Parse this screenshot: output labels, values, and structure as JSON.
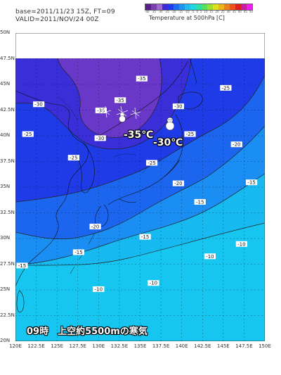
{
  "header": {
    "base": "base=2011/11/23 15Z, FT=09",
    "valid": "VALID=2011/NOV/24 00Z"
  },
  "legend": {
    "title": "Temperature at 500hPa  [C]",
    "ticks": [
      "-40",
      "-35",
      "-30",
      "-25",
      "-20",
      "-15",
      "-10",
      "-5",
      "0",
      "5",
      "10",
      "15",
      "20",
      "25",
      "30",
      "35",
      "40",
      "45",
      "50"
    ],
    "colors": [
      "#5a1e8c",
      "#7a3fb0",
      "#9a6ad0",
      "#3c2ad8",
      "#1e3cf0",
      "#1e6ef0",
      "#1e96f0",
      "#1ebef0",
      "#1ed8e0",
      "#2ce0a0",
      "#5ae05a",
      "#a0e02c",
      "#e0e01e",
      "#f0b41e",
      "#f0821e",
      "#f0501e",
      "#e01e1e",
      "#c81ea0",
      "#f01ef0"
    ]
  },
  "axes": {
    "lat_labels": [
      "50N",
      "47.5N",
      "45N",
      "42.5N",
      "40N",
      "37.5N",
      "35N",
      "32.5N",
      "30N",
      "27.5N",
      "25N",
      "22.5N",
      "20N"
    ],
    "lon_labels": [
      "120E",
      "122.5E",
      "125E",
      "127.5E",
      "130E",
      "132.5E",
      "135E",
      "137.5E",
      "140E",
      "142.5E",
      "145E",
      "147.5E",
      "150E"
    ],
    "lat_range": [
      20,
      50
    ],
    "lon_range": [
      120,
      150
    ]
  },
  "contours": [
    {
      "text": "-35",
      "lon": 135.2,
      "lat": 45.5
    },
    {
      "text": "-35",
      "lon": 132.6,
      "lat": 43.4
    },
    {
      "text": "-35",
      "lon": 130.3,
      "lat": 42.4
    },
    {
      "text": "-30",
      "lon": 122.8,
      "lat": 43.0
    },
    {
      "text": "-30",
      "lon": 139.6,
      "lat": 42.8
    },
    {
      "text": "-30",
      "lon": 130.2,
      "lat": 39.7
    },
    {
      "text": "-25",
      "lon": 145.3,
      "lat": 44.6
    },
    {
      "text": "-25",
      "lon": 121.5,
      "lat": 40.1
    },
    {
      "text": "-25",
      "lon": 141.0,
      "lat": 40.1
    },
    {
      "text": "-25",
      "lon": 127.0,
      "lat": 37.8
    },
    {
      "text": "-25",
      "lon": 136.4,
      "lat": 37.3
    },
    {
      "text": "-20",
      "lon": 146.6,
      "lat": 39.1
    },
    {
      "text": "-20",
      "lon": 139.6,
      "lat": 35.3
    },
    {
      "text": "-20",
      "lon": 129.6,
      "lat": 31.1
    },
    {
      "text": "-15",
      "lon": 148.4,
      "lat": 35.4
    },
    {
      "text": "-15",
      "lon": 142.2,
      "lat": 33.5
    },
    {
      "text": "-15",
      "lon": 135.6,
      "lat": 30.1
    },
    {
      "text": "-15",
      "lon": 120.8,
      "lat": 27.3
    },
    {
      "text": "-15",
      "lon": 127.6,
      "lat": 28.6
    },
    {
      "text": "-10",
      "lon": 147.2,
      "lat": 29.4
    },
    {
      "text": "-10",
      "lon": 143.4,
      "lat": 28.2
    },
    {
      "text": "-10",
      "lon": 136.6,
      "lat": 25.6
    },
    {
      "text": "-10",
      "lon": 130.0,
      "lat": 25.0
    }
  ],
  "annotations": {
    "minus35": "-35℃",
    "minus30": "-30℃",
    "caption": "09時　上空約5500mの寒気"
  }
}
